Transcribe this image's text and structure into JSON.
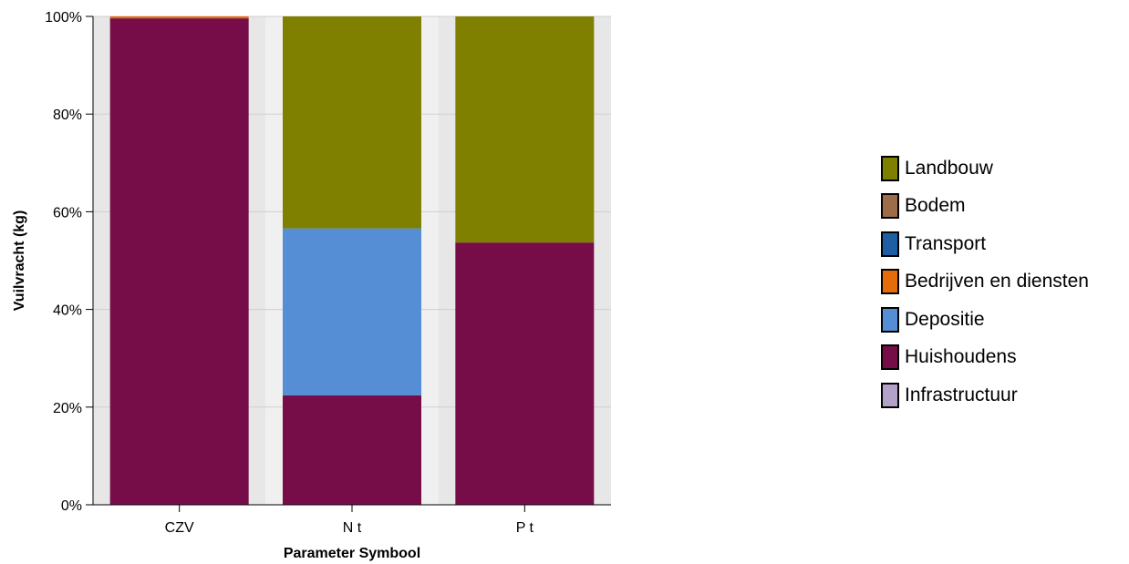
{
  "chart_data": {
    "type": "bar",
    "stacked": true,
    "normalized": true,
    "categories": [
      "CZV",
      "N t",
      "P t"
    ],
    "xlabel": "Parameter Symbool",
    "ylabel": "Vuilvracht (kg)",
    "ylim": [
      0,
      100
    ],
    "yticks": [
      "0%",
      "20%",
      "40%",
      "60%",
      "80%",
      "100%"
    ],
    "grid": true,
    "legend_position": "right",
    "series": [
      {
        "name": "Infrastructuur",
        "color": "#b3a2c7",
        "values": [
          0,
          0,
          0
        ]
      },
      {
        "name": "Huishoudens",
        "color": "#770d48",
        "values": [
          99.6,
          22.4,
          53.7
        ]
      },
      {
        "name": "Depositie",
        "color": "#558ed5",
        "values": [
          0,
          34.2,
          0
        ]
      },
      {
        "name": "Bedrijven en diensten",
        "color": "#e46c0a",
        "values": [
          0.4,
          0,
          0
        ]
      },
      {
        "name": "Transport",
        "color": "#1f5ea3",
        "values": [
          0,
          0,
          0
        ]
      },
      {
        "name": "Bodem",
        "color": "#9e6c48",
        "values": [
          0,
          0,
          0
        ]
      },
      {
        "name": "Landbouw",
        "color": "#7f7f00",
        "values": [
          0,
          43.4,
          46.3
        ]
      }
    ],
    "legend_order": [
      "Landbouw",
      "Bodem",
      "Transport",
      "Bedrijven en diensten",
      "Depositie",
      "Huishoudens",
      "Infrastructuur"
    ]
  }
}
